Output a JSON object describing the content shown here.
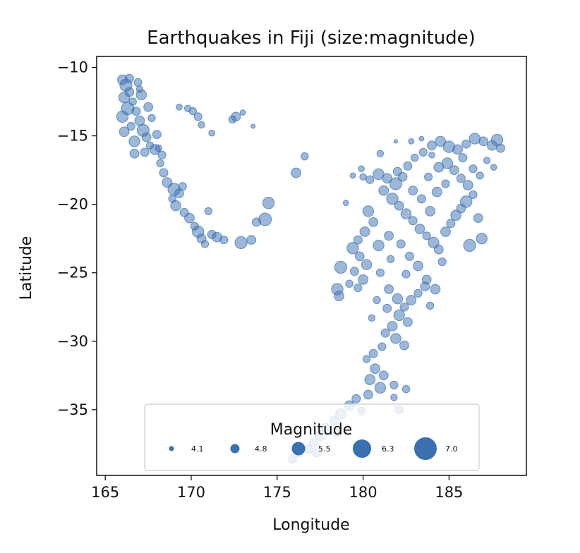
{
  "chart_data": {
    "type": "scatter",
    "title": "Earthquakes in Fiji (size:magnitude)",
    "xlabel": "Longitude",
    "ylabel": "Latitude",
    "xlim": [
      164.5,
      189.5
    ],
    "ylim": [
      -39.8,
      -9.2
    ],
    "xticks": [
      165,
      170,
      175,
      180,
      185
    ],
    "xtick_labels": [
      "165",
      "170",
      "175",
      "180",
      "185"
    ],
    "yticks": [
      -10,
      -15,
      -20,
      -25,
      -30,
      -35
    ],
    "ytick_labels": [
      "−10",
      "−15",
      "−20",
      "−25",
      "−30",
      "−35"
    ],
    "grid": false,
    "point_color": "#3a6fb0",
    "point_opacity": 0.5,
    "size_encoding": "magnitude",
    "legend": {
      "title": "Magnitude",
      "placement": "lower center",
      "entries": [
        {
          "label": "4.1",
          "mag": 4.1
        },
        {
          "label": "4.8",
          "mag": 4.8
        },
        {
          "label": "5.5",
          "mag": 5.5
        },
        {
          "label": "6.3",
          "mag": 6.3
        },
        {
          "label": "7.0",
          "mag": 7.0
        }
      ]
    },
    "points": [
      [
        166.0,
        -10.9,
        5.0
      ],
      [
        166.2,
        -11.3,
        5.4
      ],
      [
        166.4,
        -11.8,
        4.9
      ],
      [
        166.1,
        -12.2,
        5.2
      ],
      [
        166.6,
        -12.5,
        4.6
      ],
      [
        166.3,
        -13.0,
        5.5
      ],
      [
        166.8,
        -13.2,
        4.8
      ],
      [
        166.0,
        -13.6,
        5.3
      ],
      [
        167.0,
        -13.9,
        5.0
      ],
      [
        166.5,
        -14.3,
        4.7
      ],
      [
        167.2,
        -14.6,
        5.4
      ],
      [
        166.1,
        -14.7,
        5.0
      ],
      [
        167.4,
        -15.1,
        4.9
      ],
      [
        166.7,
        -15.4,
        5.2
      ],
      [
        167.6,
        -15.7,
        4.6
      ],
      [
        167.9,
        -16.0,
        5.1
      ],
      [
        167.3,
        -16.2,
        4.8
      ],
      [
        168.1,
        -15.9,
        4.5
      ],
      [
        166.9,
        -11.1,
        4.7
      ],
      [
        167.1,
        -12.0,
        5.1
      ],
      [
        167.5,
        -12.9,
        4.9
      ],
      [
        167.7,
        -13.7,
        4.6
      ],
      [
        168.0,
        -14.9,
        4.8
      ],
      [
        168.3,
        -16.4,
        4.7
      ],
      [
        167.0,
        -11.6,
        4.5
      ],
      [
        166.4,
        -10.8,
        4.8
      ],
      [
        166.7,
        -16.3,
        4.9
      ],
      [
        168.2,
        -17.0,
        4.6
      ],
      [
        168.4,
        -17.7,
        4.8
      ],
      [
        168.6,
        -18.4,
        5.0
      ],
      [
        169.0,
        -18.9,
        5.4
      ],
      [
        169.3,
        -19.2,
        4.9
      ],
      [
        169.5,
        -18.7,
        4.7
      ],
      [
        168.9,
        -19.6,
        4.6
      ],
      [
        169.1,
        -20.1,
        5.1
      ],
      [
        169.6,
        -20.6,
        4.8
      ],
      [
        169.9,
        -21.0,
        5.0
      ],
      [
        170.2,
        -21.6,
        4.7
      ],
      [
        170.4,
        -22.0,
        5.3
      ],
      [
        170.6,
        -22.5,
        4.9
      ],
      [
        170.8,
        -22.9,
        4.6
      ],
      [
        171.2,
        -22.2,
        4.8
      ],
      [
        171.5,
        -22.4,
        5.0
      ],
      [
        171.9,
        -22.6,
        4.7
      ],
      [
        169.8,
        -13.0,
        4.5
      ],
      [
        169.3,
        -12.9,
        4.4
      ],
      [
        170.1,
        -13.2,
        4.6
      ],
      [
        170.4,
        -13.6,
        4.7
      ],
      [
        170.6,
        -14.2,
        4.5
      ],
      [
        171.2,
        -14.8,
        4.4
      ],
      [
        172.6,
        -13.6,
        4.9
      ],
      [
        172.4,
        -13.8,
        4.6
      ],
      [
        173.0,
        -13.3,
        4.3
      ],
      [
        173.6,
        -14.3,
        4.1
      ],
      [
        172.9,
        -22.8,
        5.4
      ],
      [
        173.5,
        -22.6,
        4.9
      ],
      [
        173.8,
        -21.3,
        4.8
      ],
      [
        174.3,
        -21.1,
        5.5
      ],
      [
        174.5,
        -19.9,
        5.3
      ],
      [
        171.0,
        -20.5,
        4.6
      ],
      [
        176.6,
        -16.5,
        4.6
      ],
      [
        176.1,
        -17.7,
        5.0
      ],
      [
        179.0,
        -19.9,
        4.3
      ],
      [
        180.9,
        -17.8,
        5.2
      ],
      [
        181.4,
        -18.1,
        5.0
      ],
      [
        181.9,
        -18.5,
        5.4
      ],
      [
        182.3,
        -18.0,
        4.9
      ],
      [
        182.6,
        -17.2,
        4.8
      ],
      [
        183.0,
        -16.6,
        4.6
      ],
      [
        183.5,
        -16.2,
        4.7
      ],
      [
        184.0,
        -15.7,
        4.9
      ],
      [
        184.5,
        -15.4,
        5.1
      ],
      [
        185.0,
        -15.8,
        5.3
      ],
      [
        185.5,
        -16.0,
        5.0
      ],
      [
        186.0,
        -15.6,
        4.8
      ],
      [
        186.5,
        -15.2,
        5.2
      ],
      [
        187.0,
        -15.4,
        4.9
      ],
      [
        187.5,
        -15.7,
        5.0
      ],
      [
        188.0,
        -15.9,
        4.8
      ],
      [
        187.8,
        -15.3,
        5.3
      ],
      [
        184.9,
        -17.0,
        5.2
      ],
      [
        185.3,
        -17.5,
        4.9
      ],
      [
        185.7,
        -18.1,
        4.8
      ],
      [
        186.1,
        -18.6,
        5.0
      ],
      [
        186.4,
        -17.4,
        4.7
      ],
      [
        186.8,
        -17.9,
        4.6
      ],
      [
        187.2,
        -16.8,
        4.5
      ],
      [
        187.6,
        -17.3,
        4.4
      ],
      [
        181.2,
        -19.0,
        5.0
      ],
      [
        181.7,
        -19.6,
        5.3
      ],
      [
        182.1,
        -20.1,
        4.9
      ],
      [
        182.5,
        -20.7,
        5.1
      ],
      [
        182.9,
        -21.2,
        4.8
      ],
      [
        183.3,
        -21.8,
        5.0
      ],
      [
        183.7,
        -22.3,
        4.7
      ],
      [
        184.1,
        -22.8,
        5.2
      ],
      [
        184.4,
        -23.3,
        4.9
      ],
      [
        184.8,
        -22.0,
        5.0
      ],
      [
        185.1,
        -21.4,
        4.8
      ],
      [
        185.4,
        -20.8,
        5.1
      ],
      [
        185.7,
        -20.3,
        4.9
      ],
      [
        186.0,
        -19.8,
        5.3
      ],
      [
        186.4,
        -19.3,
        4.7
      ],
      [
        186.7,
        -21.0,
        4.9
      ],
      [
        186.9,
        -22.5,
        5.2
      ],
      [
        183.9,
        -20.5,
        5.0
      ],
      [
        183.4,
        -19.6,
        4.8
      ],
      [
        182.9,
        -19.0,
        4.9
      ],
      [
        184.3,
        -19.1,
        5.0
      ],
      [
        184.8,
        -18.5,
        4.7
      ],
      [
        180.3,
        -20.5,
        5.2
      ],
      [
        180.6,
        -21.3,
        4.9
      ],
      [
        180.1,
        -22.0,
        5.0
      ],
      [
        179.7,
        -22.6,
        4.8
      ],
      [
        179.4,
        -23.2,
        5.3
      ],
      [
        179.8,
        -23.8,
        4.9
      ],
      [
        180.2,
        -24.4,
        5.1
      ],
      [
        179.5,
        -24.9,
        4.8
      ],
      [
        180.0,
        -25.5,
        5.0
      ],
      [
        179.7,
        -26.1,
        4.7
      ],
      [
        178.7,
        -24.6,
        5.4
      ],
      [
        178.5,
        -26.2,
        5.3
      ],
      [
        178.6,
        -26.7,
        5.0
      ],
      [
        179.2,
        -25.8,
        4.6
      ],
      [
        181.0,
        -25.0,
        4.7
      ],
      [
        181.5,
        -26.2,
        4.9
      ],
      [
        182.0,
        -26.9,
        5.1
      ],
      [
        182.4,
        -27.5,
        4.8
      ],
      [
        182.8,
        -27.0,
        5.0
      ],
      [
        183.2,
        -26.5,
        4.7
      ],
      [
        183.6,
        -26.0,
        4.9
      ],
      [
        184.2,
        -26.2,
        5.0
      ],
      [
        183.9,
        -27.4,
        4.6
      ],
      [
        182.1,
        -28.1,
        5.2
      ],
      [
        182.6,
        -28.6,
        4.9
      ],
      [
        181.7,
        -28.9,
        5.0
      ],
      [
        181.3,
        -29.4,
        4.8
      ],
      [
        181.9,
        -29.8,
        5.1
      ],
      [
        182.4,
        -30.3,
        4.9
      ],
      [
        181.1,
        -30.4,
        4.7
      ],
      [
        180.6,
        -30.9,
        4.8
      ],
      [
        180.2,
        -31.3,
        4.6
      ],
      [
        180.7,
        -32.0,
        5.0
      ],
      [
        181.2,
        -32.5,
        4.9
      ],
      [
        180.4,
        -32.8,
        5.1
      ],
      [
        181.0,
        -33.4,
        5.2
      ],
      [
        180.3,
        -33.9,
        4.9
      ],
      [
        181.8,
        -33.2,
        4.7
      ],
      [
        182.5,
        -33.5,
        4.6
      ],
      [
        179.6,
        -34.2,
        4.8
      ],
      [
        179.2,
        -34.7,
        5.0
      ],
      [
        179.9,
        -35.1,
        4.7
      ],
      [
        181.8,
        -34.1,
        4.5
      ],
      [
        182.1,
        -35.0,
        4.8
      ],
      [
        178.7,
        -35.3,
        5.1
      ],
      [
        178.3,
        -35.8,
        4.9
      ],
      [
        177.8,
        -36.3,
        4.8
      ],
      [
        177.5,
        -36.9,
        5.0
      ],
      [
        177.1,
        -37.4,
        4.7
      ],
      [
        176.8,
        -37.9,
        4.9
      ],
      [
        176.3,
        -38.2,
        4.6
      ],
      [
        175.9,
        -38.6,
        4.8
      ],
      [
        177.3,
        -38.1,
        5.0
      ],
      [
        178.5,
        -36.7,
        4.7
      ],
      [
        182.7,
        -23.8,
        4.8
      ],
      [
        183.2,
        -24.5,
        5.0
      ],
      [
        182.5,
        -25.1,
        4.7
      ],
      [
        183.7,
        -25.5,
        4.9
      ],
      [
        181.6,
        -24.0,
        4.6
      ],
      [
        180.9,
        -23.0,
        5.2
      ],
      [
        184.6,
        -24.2,
        4.7
      ],
      [
        186.2,
        -23.0,
        5.4
      ],
      [
        185.8,
        -16.6,
        4.8
      ],
      [
        184.4,
        -17.3,
        5.0
      ],
      [
        183.8,
        -18.0,
        4.7
      ],
      [
        182.0,
        -17.6,
        4.8
      ],
      [
        180.4,
        -18.2,
        4.7
      ],
      [
        180.0,
        -18.0,
        4.5
      ],
      [
        181.5,
        -22.3,
        4.9
      ],
      [
        182.2,
        -22.9,
        4.8
      ],
      [
        184.0,
        -16.4,
        4.4
      ],
      [
        182.8,
        -15.4,
        4.3
      ],
      [
        183.4,
        -15.2,
        4.2
      ],
      [
        181.9,
        -15.4,
        4.0
      ],
      [
        181.0,
        -16.3,
        4.5
      ],
      [
        179.9,
        -17.4,
        4.4
      ],
      [
        179.4,
        -17.9,
        4.3
      ],
      [
        180.8,
        -27.0,
        4.6
      ],
      [
        181.4,
        -27.6,
        4.8
      ],
      [
        180.5,
        -28.3,
        4.5
      ]
    ]
  }
}
